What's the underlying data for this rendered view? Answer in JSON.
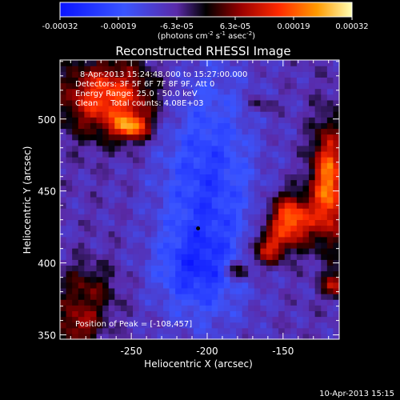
{
  "chart_data": {
    "type": "heatmap",
    "title": "Reconstructed RHESSI Image",
    "xlabel": "Heliocentric X (arcsec)",
    "ylabel": "Heliocentric Y (arcsec)",
    "xlim": [
      -297,
      -113
    ],
    "ylim": [
      347,
      541
    ],
    "x_ticks": [
      -250,
      -200,
      -150
    ],
    "y_ticks": [
      350,
      400,
      450,
      500
    ],
    "colorbar": {
      "min": -0.00032,
      "max": 0.00032,
      "tick_labels": [
        "-0.00032",
        "-0.00019",
        "-6.3e-05",
        "6.3e-05",
        "0.00019",
        "0.00032"
      ],
      "unit_main": "(photons cm",
      "unit_sup1": "-2",
      "unit_mid": " s",
      "unit_sup2": "-1",
      "unit_mid2": " asec",
      "unit_sup3": "-2",
      "unit_end": ")"
    },
    "annotations": [
      "8-Apr-2013 15:24:48.000 to 15:27:00.000",
      "Detectors: 3F 5F 6F 7F 8F 9F, Att 0",
      "Energy Range: 25.0 - 50.0 keV",
      "Clean     Total counts: 4.08E+03"
    ],
    "peak_label": "Position of Peak = [-108,457]",
    "peak": [
      -108,
      457
    ],
    "center_marker": [
      -206,
      424
    ],
    "hot_regions": [
      {
        "x": -265,
        "y": 515,
        "sx": 22,
        "sy": 18,
        "amp": 0.00026
      },
      {
        "x": -250,
        "y": 495,
        "sx": 8,
        "sy": 6,
        "amp": 0.00024
      },
      {
        "x": -280,
        "y": 380,
        "sx": 14,
        "sy": 14,
        "amp": 0.00012
      },
      {
        "x": -285,
        "y": 355,
        "sx": 10,
        "sy": 10,
        "amp": 0.00014
      },
      {
        "x": -145,
        "y": 430,
        "sx": 10,
        "sy": 12,
        "amp": 0.0003
      },
      {
        "x": -160,
        "y": 410,
        "sx": 8,
        "sy": 8,
        "amp": 0.0002
      },
      {
        "x": -120,
        "y": 455,
        "sx": 8,
        "sy": 28,
        "amp": 0.0003
      },
      {
        "x": -180,
        "y": 395,
        "sx": 6,
        "sy": 5,
        "amp": 0.00016
      },
      {
        "x": -115,
        "y": 385,
        "sx": 6,
        "sy": 6,
        "amp": 0.00018
      },
      {
        "x": -165,
        "y": 510,
        "sx": 6,
        "sy": 4,
        "amp": 8e-05
      }
    ],
    "cold_regions": [
      {
        "x": -200,
        "y": 450,
        "sx": 22,
        "sy": 60,
        "amp": -0.00016
      },
      {
        "x": -210,
        "y": 395,
        "sx": 18,
        "sy": 18,
        "amp": -0.0001
      }
    ],
    "grid_cells": [
      46,
      49
    ]
  },
  "footer": {
    "timestamp": "10-Apr-2013 15:15"
  }
}
